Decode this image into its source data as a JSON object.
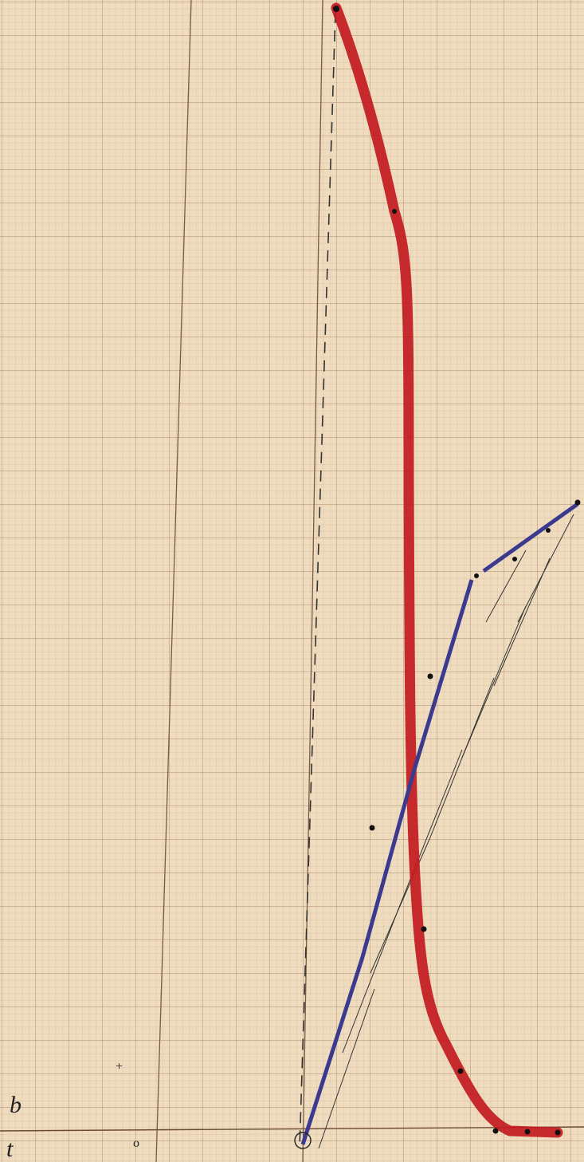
{
  "labels": {
    "b": "b",
    "t": "t",
    "o": "o",
    "plus": "+"
  }
}
